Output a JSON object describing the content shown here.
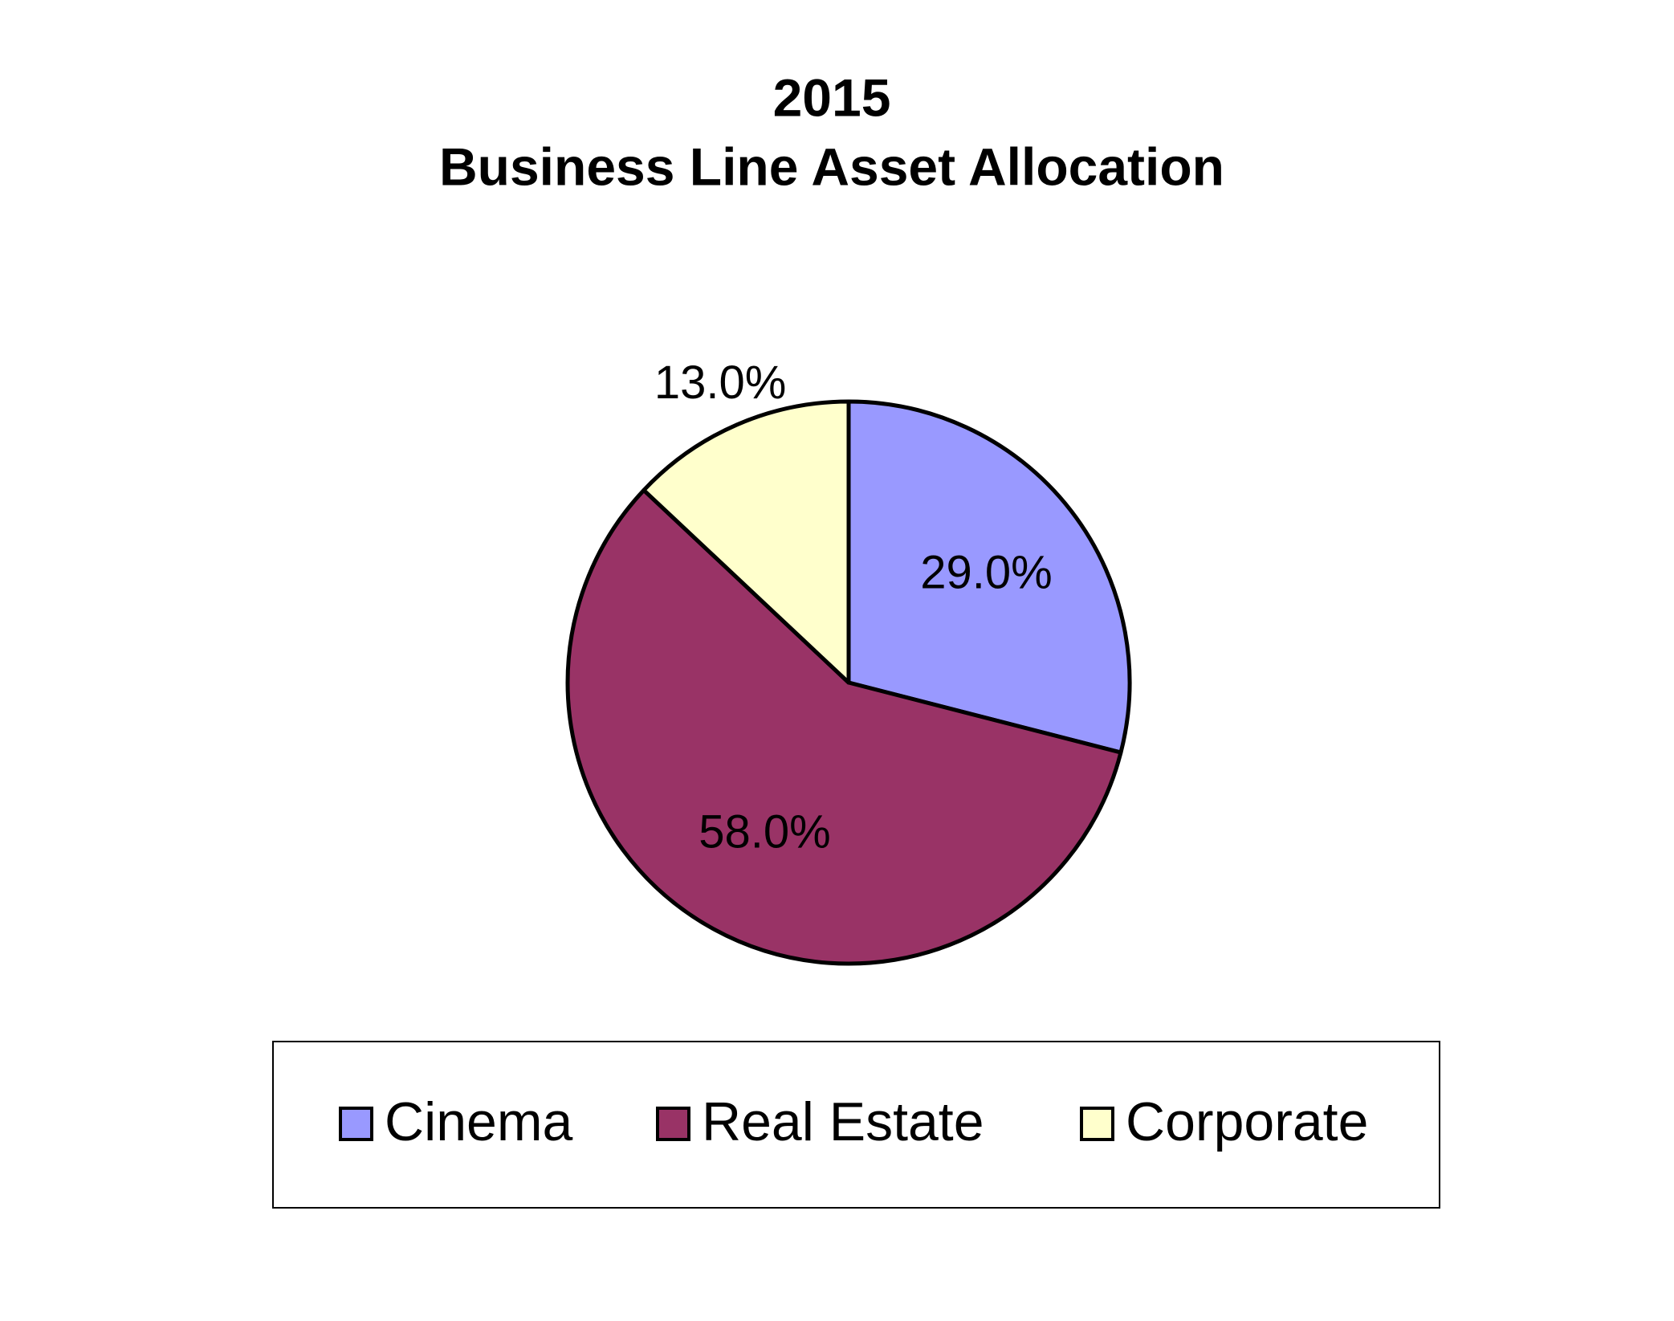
{
  "chart_data": {
    "type": "pie",
    "title": "2015",
    "subtitle": "Business Line Asset Allocation",
    "categories": [
      "Cinema",
      "Real Estate",
      "Corporate"
    ],
    "values": [
      29,
      58,
      13
    ],
    "value_labels": [
      "29.0%",
      "58.0%",
      "13.0%"
    ],
    "colors": [
      "#9999ff",
      "#993366",
      "#ffffcc"
    ],
    "legend": "bottom"
  }
}
